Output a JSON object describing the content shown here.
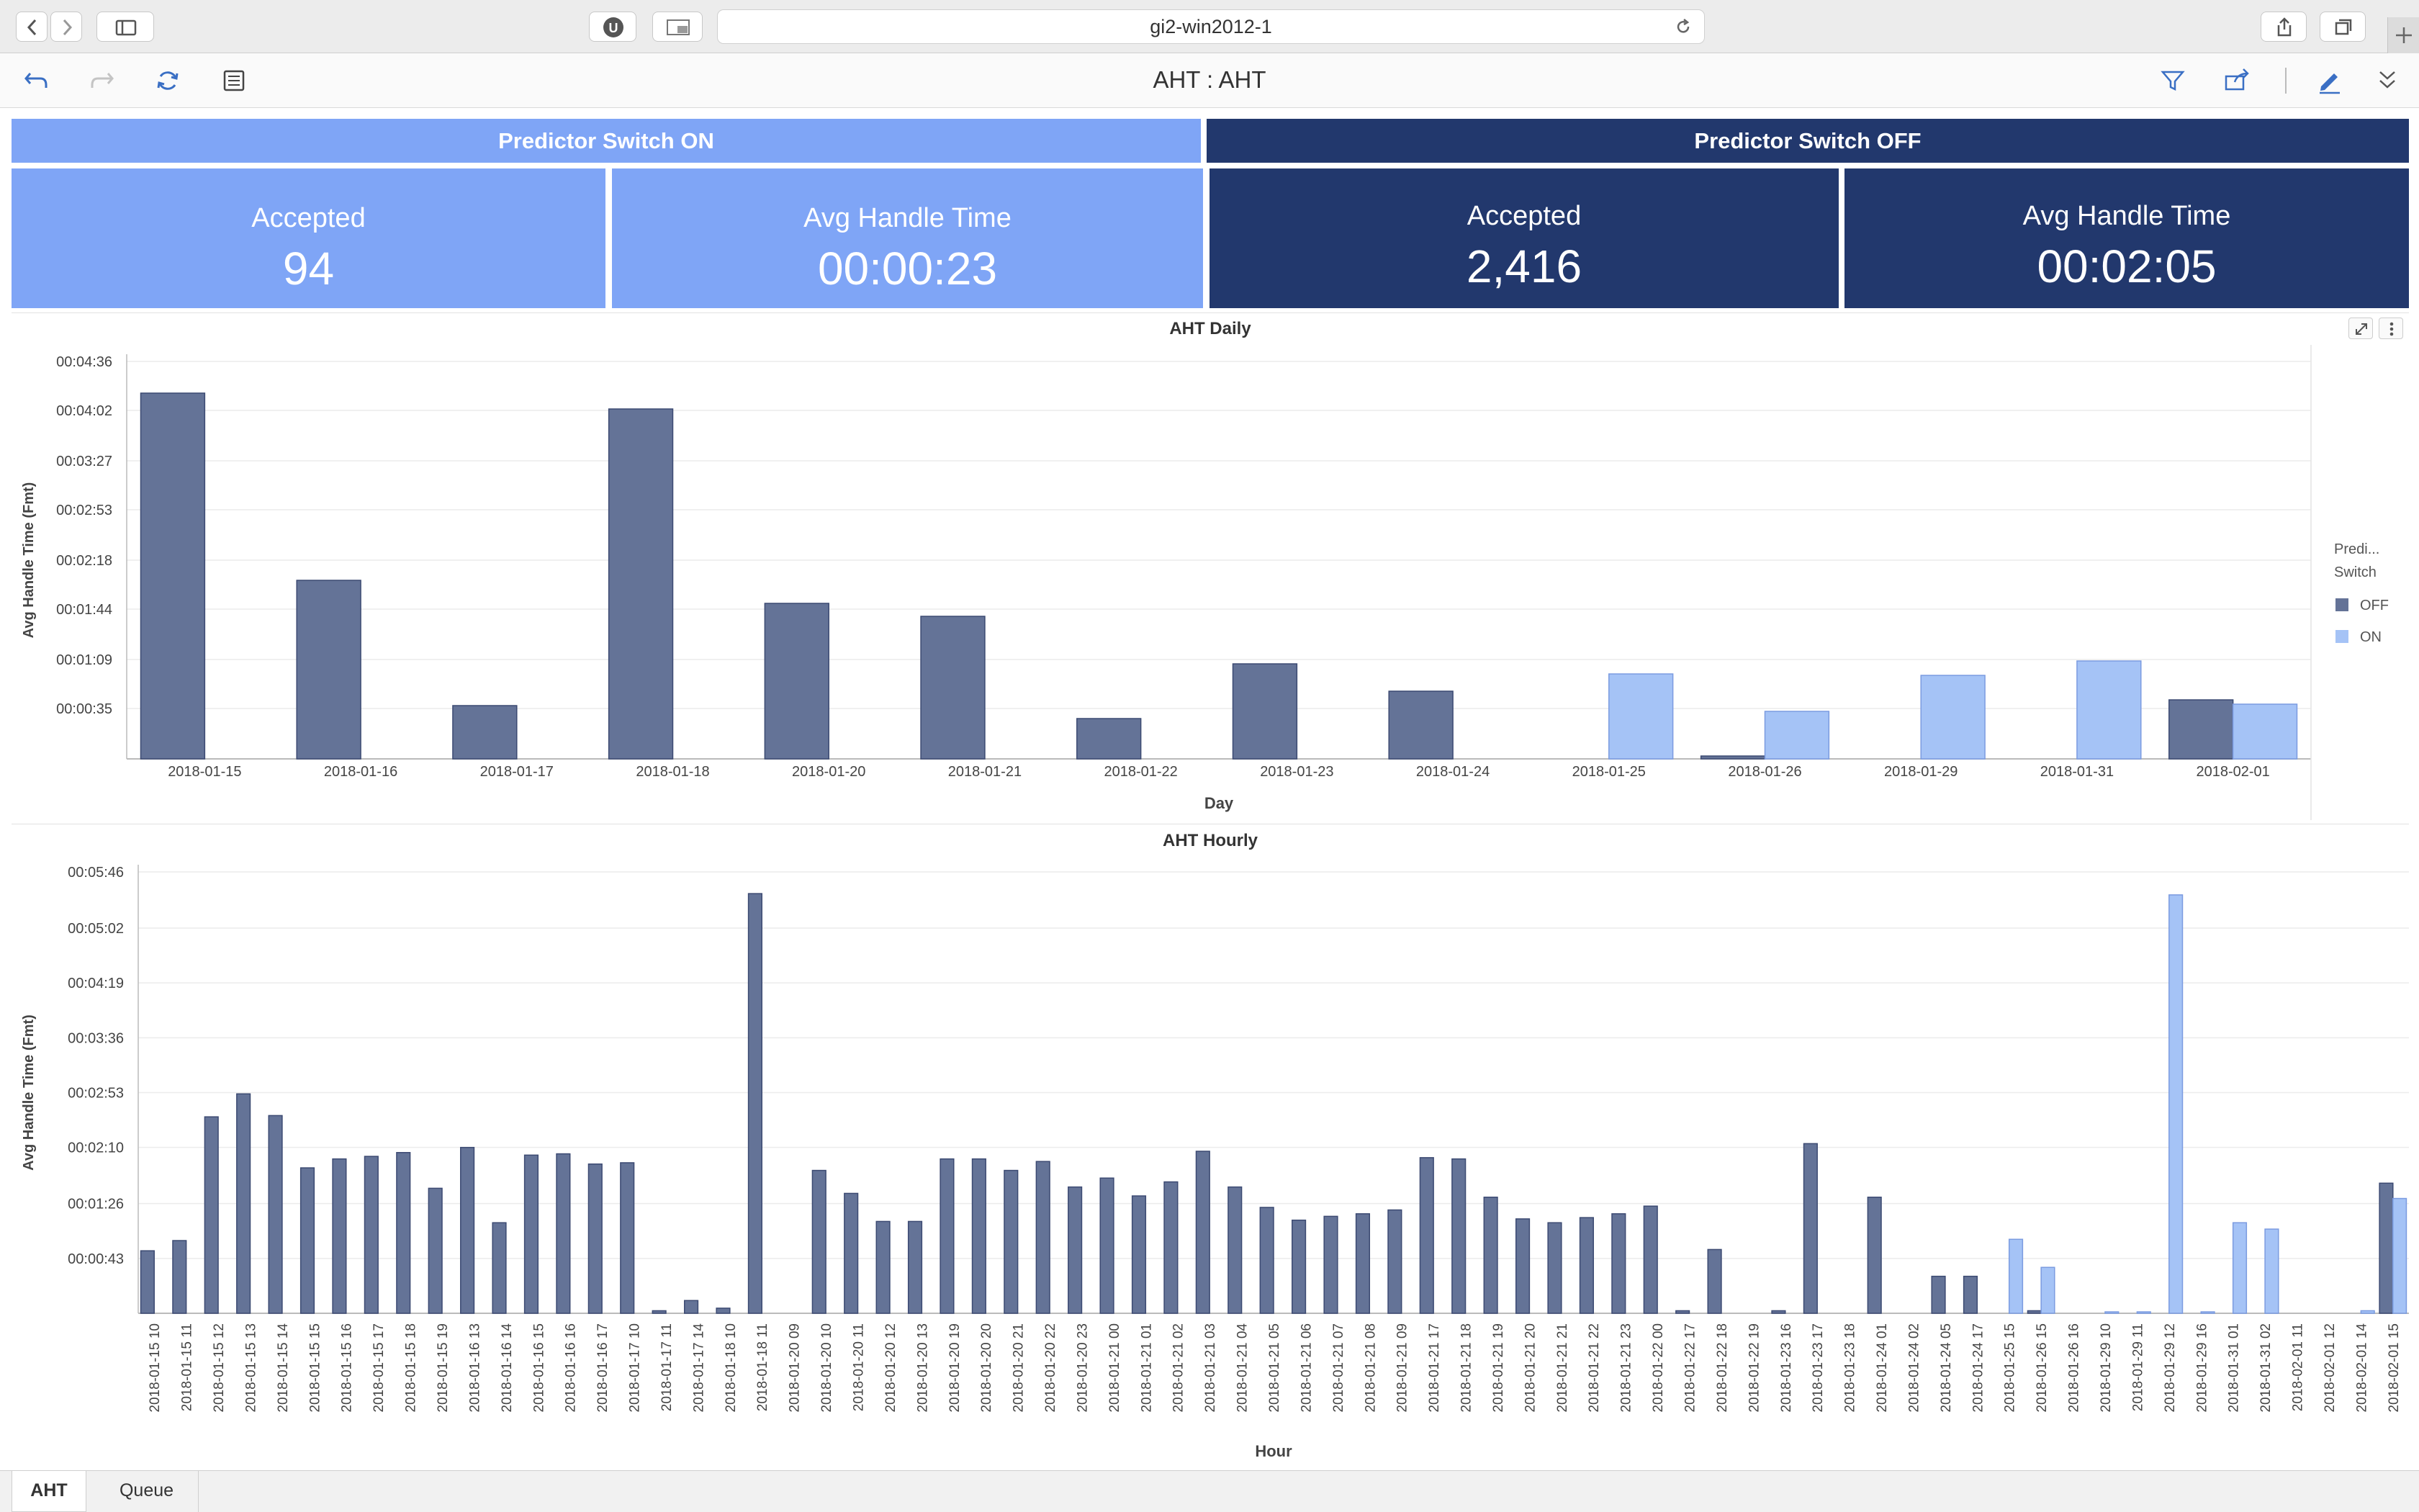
{
  "browser": {
    "url": "gi2-win2012-1"
  },
  "toolbar": {
    "title": "AHT : AHT"
  },
  "switches": {
    "on_label": "Predictor Switch ON",
    "off_label": "Predictor Switch OFF"
  },
  "kpis": {
    "on_accepted_label": "Accepted",
    "on_accepted_value": "94",
    "on_aht_label": "Avg Handle Time",
    "on_aht_value": "00:00:23",
    "off_accepted_label": "Accepted",
    "off_accepted_value": "2,416",
    "off_aht_label": "Avg Handle Time",
    "off_aht_value": "00:02:05"
  },
  "colors": {
    "on": "#7fa5f6",
    "off": "#22386d",
    "bar_off": "#647397",
    "bar_on": "#a5c3f6"
  },
  "tabs": [
    {
      "label": "AHT",
      "active": true
    },
    {
      "label": "Queue",
      "active": false
    }
  ],
  "chart_data": [
    {
      "type": "bar",
      "title": "AHT Daily",
      "xlabel": "Day",
      "ylabel": "Avg Handle Time (Fmt)",
      "ylim": [
        0,
        276
      ],
      "yticks": [
        35,
        69,
        104,
        138,
        173,
        207,
        242,
        276
      ],
      "ytick_labels": [
        "00:00:35",
        "00:01:09",
        "00:01:44",
        "00:02:18",
        "00:02:53",
        "00:03:27",
        "00:04:02",
        "00:04:36"
      ],
      "legend": {
        "title": "Predi... Switch",
        "position": "right",
        "entries": [
          "OFF",
          "ON"
        ]
      },
      "categories": [
        "2018-01-15",
        "2018-01-16",
        "2018-01-17",
        "2018-01-18",
        "2018-01-20",
        "2018-01-21",
        "2018-01-22",
        "2018-01-23",
        "2018-01-24",
        "2018-01-25",
        "2018-01-26",
        "2018-01-29",
        "2018-01-31",
        "2018-02-01"
      ],
      "series": [
        {
          "name": "OFF",
          "values": [
            254,
            124,
            37,
            243,
            108,
            99,
            28,
            66,
            47,
            null,
            2,
            null,
            null,
            41
          ]
        },
        {
          "name": "ON",
          "values": [
            null,
            null,
            null,
            null,
            null,
            null,
            null,
            null,
            null,
            59,
            33,
            58,
            68,
            38
          ]
        }
      ]
    },
    {
      "type": "bar",
      "title": "AHT Hourly",
      "xlabel": "Hour",
      "ylabel": "Avg Handle Time (Fmt)",
      "ylim": [
        0,
        346
      ],
      "yticks": [
        43,
        86,
        130,
        173,
        216,
        259,
        302,
        346
      ],
      "ytick_labels": [
        "00:00:43",
        "00:01:26",
        "00:02:10",
        "00:02:53",
        "00:03:36",
        "00:04:19",
        "00:05:02",
        "00:05:46"
      ],
      "categories": [
        "2018-01-15 10",
        "2018-01-15 11",
        "2018-01-15 12",
        "2018-01-15 13",
        "2018-01-15 14",
        "2018-01-15 15",
        "2018-01-15 16",
        "2018-01-15 17",
        "2018-01-15 18",
        "2018-01-15 19",
        "2018-01-16 13",
        "2018-01-16 14",
        "2018-01-16 15",
        "2018-01-16 16",
        "2018-01-16 17",
        "2018-01-17 10",
        "2018-01-17 11",
        "2018-01-17 14",
        "2018-01-18 10",
        "2018-01-18 11",
        "2018-01-20 09",
        "2018-01-20 10",
        "2018-01-20 11",
        "2018-01-20 12",
        "2018-01-20 13",
        "2018-01-20 19",
        "2018-01-20 20",
        "2018-01-20 21",
        "2018-01-20 22",
        "2018-01-20 23",
        "2018-01-21 00",
        "2018-01-21 01",
        "2018-01-21 02",
        "2018-01-21 03",
        "2018-01-21 04",
        "2018-01-21 05",
        "2018-01-21 06",
        "2018-01-21 07",
        "2018-01-21 08",
        "2018-01-21 09",
        "2018-01-21 17",
        "2018-01-21 18",
        "2018-01-21 19",
        "2018-01-21 20",
        "2018-01-21 21",
        "2018-01-21 22",
        "2018-01-21 23",
        "2018-01-22 00",
        "2018-01-22 17",
        "2018-01-22 18",
        "2018-01-22 19",
        "2018-01-23 16",
        "2018-01-23 17",
        "2018-01-23 18",
        "2018-01-24 01",
        "2018-01-24 02",
        "2018-01-24 05",
        "2018-01-24 17",
        "2018-01-25 15",
        "2018-01-26 15",
        "2018-01-26 16",
        "2018-01-29 10",
        "2018-01-29 11",
        "2018-01-29 12",
        "2018-01-29 16",
        "2018-01-31 01",
        "2018-01-31 02",
        "2018-02-01 11",
        "2018-02-01 12",
        "2018-02-01 14",
        "2018-02-01 15"
      ],
      "series": [
        {
          "name": "OFF",
          "values": [
            49,
            57,
            154,
            172,
            155,
            114,
            121,
            123,
            126,
            98,
            130,
            71,
            124,
            125,
            117,
            118,
            2,
            10,
            4,
            329,
            null,
            112,
            94,
            72,
            72,
            121,
            121,
            112,
            119,
            99,
            106,
            92,
            103,
            127,
            99,
            83,
            73,
            76,
            78,
            81,
            122,
            121,
            91,
            74,
            71,
            75,
            78,
            84,
            2,
            50,
            null,
            2,
            133,
            null,
            91,
            null,
            29,
            29,
            null,
            2,
            null,
            null,
            null,
            null,
            null,
            null,
            null,
            null,
            null,
            null,
            102
          ]
        },
        {
          "name": "ON",
          "values": [
            null,
            null,
            null,
            null,
            null,
            null,
            null,
            null,
            null,
            null,
            null,
            null,
            null,
            null,
            null,
            null,
            null,
            null,
            null,
            null,
            null,
            null,
            null,
            null,
            null,
            null,
            null,
            null,
            null,
            null,
            null,
            null,
            null,
            null,
            null,
            null,
            null,
            null,
            null,
            null,
            null,
            null,
            null,
            null,
            null,
            null,
            null,
            null,
            null,
            null,
            null,
            null,
            null,
            null,
            null,
            null,
            null,
            null,
            58,
            36,
            null,
            1,
            1,
            328,
            1,
            71,
            66,
            null,
            null,
            2,
            90
          ]
        }
      ]
    }
  ]
}
